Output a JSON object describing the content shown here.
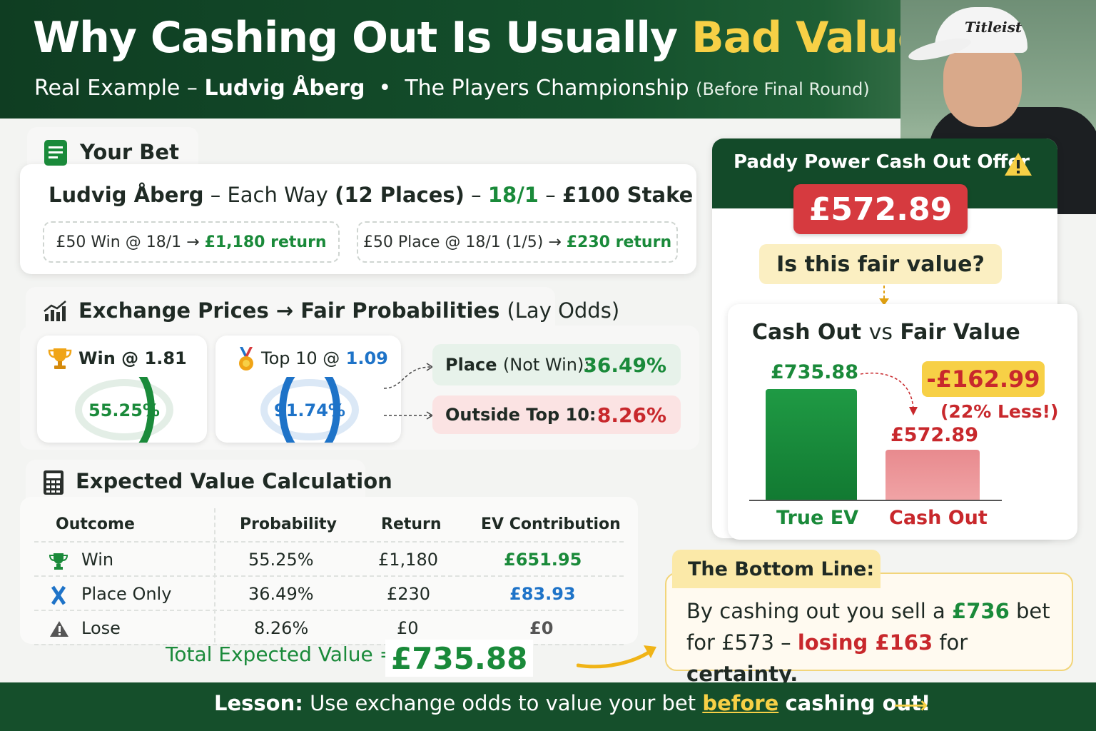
{
  "header": {
    "title_main": "Why Cashing Out Is Usually",
    "title_highlight": "Bad Value",
    "subtitle_prefix": "Real Example –",
    "player": "Ludvig Åberg",
    "separator": "•",
    "event": "The Players Championship",
    "when": "(Before Final Round)",
    "cap_logo": "Titleist"
  },
  "bet": {
    "section_title": "Your Bet",
    "player": "Ludvig Åberg",
    "dash1": "–",
    "type": "Each Way",
    "places": "(12 Places)",
    "dash2": "–",
    "odds": "18/1",
    "dash3": "–",
    "stake": "£100 Stake",
    "win_part": "£50 Win @ 18/1 →",
    "win_return": "£1,180 return",
    "place_part": "£50 Place @ 18/1 (1/5) →",
    "place_return": "£230 return"
  },
  "exchange": {
    "section_title": "Exchange Prices → Fair Probabilities",
    "section_suffix": "(Lay Odds)",
    "win_label": "Win @ 1.81",
    "win_pct": "55.25%",
    "win_fraction": 0.5525,
    "top10_label": "Top 10 @",
    "top10_odds": "1.09",
    "top10_pct": "91.74%",
    "top10_fraction": 0.9174,
    "place_label": "Place",
    "place_note": "(Not Win):",
    "place_pct": "36.49%",
    "outside_label": "Outside Top 10:",
    "outside_pct": "8.26%"
  },
  "ev": {
    "section_title": "Expected Value Calculation",
    "headers": [
      "Outcome",
      "Probability",
      "Return",
      "EV Contribution"
    ],
    "rows": [
      {
        "outcome": "Win",
        "prob": "55.25%",
        "ret": "£1,180",
        "ev": "£651.95"
      },
      {
        "outcome": "Place Only",
        "prob": "36.49%",
        "ret": "£230",
        "ev": "£83.93"
      },
      {
        "outcome": "Lose",
        "prob": "8.26%",
        "ret": "£0",
        "ev": "£0"
      }
    ],
    "total_label": "Total Expected Value  =",
    "total_value": "£735.88"
  },
  "offer": {
    "title": "Paddy Power Cash Out Offer",
    "amount": "£572.89",
    "question": "Is this fair value?"
  },
  "compare": {
    "title_a": "Cash Out",
    "title_vs": "vs",
    "title_b": "Fair Value",
    "ev_value": "£735.88",
    "ev_label": "True EV",
    "co_value": "£572.89",
    "co_label": "Cash Out",
    "diff": "-£162.99",
    "diff_pct": "(22% Less!)"
  },
  "chart_data": {
    "type": "bar",
    "categories": [
      "True EV",
      "Cash Out"
    ],
    "values": [
      735.88,
      572.89
    ]
  },
  "bottom_line": {
    "title": "The Bottom Line:",
    "t1": "By cashing out you sell a",
    "v1": "£736",
    "t2": "bet for",
    "v2": "£573 –",
    "v3": "losing £163",
    "t3": "for",
    "v4": "certainty."
  },
  "footer": {
    "lesson": "Lesson:",
    "t1": "Use exchange odds to value your bet",
    "before": "before",
    "t2": "cashing out!",
    "arrow": "⟶"
  },
  "colors": {
    "brand_green": "#134a29",
    "accent_yellow": "#f7d046",
    "positive": "#1a8a3a",
    "negative": "#c8282c",
    "blue": "#1e73c8"
  }
}
